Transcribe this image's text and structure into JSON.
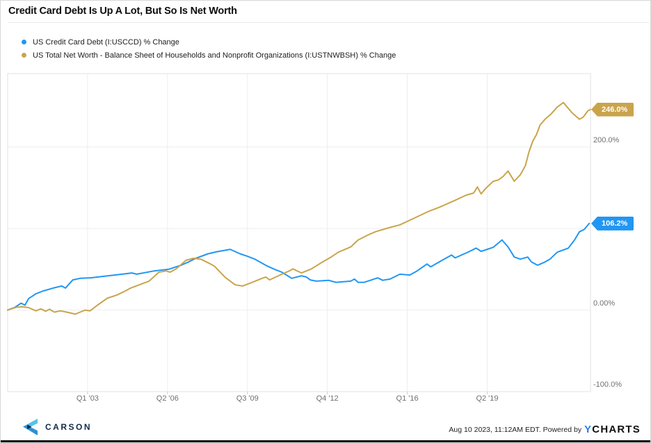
{
  "header": {
    "title": "Credit Card Debt Is Up A Lot, But So Is Net Worth"
  },
  "legend": [
    {
      "label": "US Credit Card Debt (I:USCCD) % Change",
      "color": "#2196f3"
    },
    {
      "label": "US Total Net Worth - Balance Sheet of Households and Nonprofit Organizations (I:USTNWBSH) % Change",
      "color": "#c9a44c"
    }
  ],
  "chart_data": {
    "type": "line",
    "title": "Credit Card Debt Is Up A Lot, But So Is Net Worth",
    "xlabel": "",
    "ylabel": "% Change",
    "grid": true,
    "x_axis": {
      "min": 1999.85,
      "max": 2023.55,
      "ticks": [
        {
          "label": "Q1 '03",
          "x": 2003.1
        },
        {
          "label": "Q2 '06",
          "x": 2006.35
        },
        {
          "label": "Q3 '09",
          "x": 2009.6
        },
        {
          "label": "Q4 '12",
          "x": 2012.85
        },
        {
          "label": "Q1 '16",
          "x": 2016.1
        },
        {
          "label": "Q2 '19",
          "x": 2019.35
        }
      ]
    },
    "y_axis": {
      "min": -100,
      "max": 290,
      "unit": "%",
      "gridlines": [
        200,
        100,
        0
      ],
      "ticks": [
        {
          "label": "200.0%",
          "value": 200
        },
        {
          "label": "0.00%",
          "value": 0
        },
        {
          "label": "-100.0%",
          "value": -100
        }
      ]
    },
    "series": [
      {
        "name": "US Credit Card Debt (I:USCCD) % Change",
        "color": "#2196f3",
        "end_label": "106.2%",
        "points": [
          [
            1999.85,
            0
          ],
          [
            2000.15,
            3.5
          ],
          [
            2000.4,
            8.5
          ],
          [
            2000.55,
            6
          ],
          [
            2000.7,
            14
          ],
          [
            2001.0,
            20
          ],
          [
            2001.3,
            23.5
          ],
          [
            2001.7,
            27
          ],
          [
            2002.05,
            29.5
          ],
          [
            2002.2,
            27
          ],
          [
            2002.5,
            37
          ],
          [
            2002.8,
            39
          ],
          [
            2003.2,
            39.5
          ],
          [
            2003.8,
            41.5
          ],
          [
            2004.5,
            44
          ],
          [
            2004.9,
            45.5
          ],
          [
            2005.1,
            44
          ],
          [
            2005.8,
            48
          ],
          [
            2006.4,
            50
          ],
          [
            2006.9,
            55
          ],
          [
            2007.2,
            59
          ],
          [
            2007.5,
            63.5
          ],
          [
            2008.0,
            69
          ],
          [
            2008.35,
            71.5
          ],
          [
            2008.9,
            74.5
          ],
          [
            2009.3,
            69
          ],
          [
            2009.6,
            66
          ],
          [
            2009.9,
            62.5
          ],
          [
            2010.4,
            54
          ],
          [
            2010.7,
            50
          ],
          [
            2011.0,
            46.5
          ],
          [
            2011.4,
            39
          ],
          [
            2011.8,
            42
          ],
          [
            2012.0,
            40.5
          ],
          [
            2012.15,
            37
          ],
          [
            2012.4,
            35.5
          ],
          [
            2012.9,
            36.5
          ],
          [
            2013.2,
            34
          ],
          [
            2013.8,
            35.5
          ],
          [
            2013.95,
            38
          ],
          [
            2014.1,
            34
          ],
          [
            2014.35,
            34
          ],
          [
            2014.9,
            39.5
          ],
          [
            2015.1,
            36.5
          ],
          [
            2015.4,
            38
          ],
          [
            2015.8,
            44
          ],
          [
            2016.2,
            43
          ],
          [
            2016.5,
            48
          ],
          [
            2016.9,
            56.5
          ],
          [
            2017.05,
            53
          ],
          [
            2017.6,
            62.5
          ],
          [
            2017.9,
            67.5
          ],
          [
            2018.05,
            64
          ],
          [
            2018.6,
            71.5
          ],
          [
            2018.9,
            76
          ],
          [
            2019.1,
            72
          ],
          [
            2019.4,
            75
          ],
          [
            2019.6,
            77
          ],
          [
            2019.95,
            86
          ],
          [
            2020.2,
            77.5
          ],
          [
            2020.45,
            65
          ],
          [
            2020.7,
            62.5
          ],
          [
            2021.0,
            65
          ],
          [
            2021.15,
            59
          ],
          [
            2021.4,
            55
          ],
          [
            2021.7,
            59
          ],
          [
            2021.9,
            62.5
          ],
          [
            2022.2,
            71
          ],
          [
            2022.65,
            76
          ],
          [
            2022.9,
            86
          ],
          [
            2023.1,
            96
          ],
          [
            2023.3,
            99
          ],
          [
            2023.5,
            106.2
          ]
        ]
      },
      {
        "name": "US Total Net Worth - Balance Sheet of Households and Nonprofit Organizations (I:USTNWBSH) % Change",
        "color": "#c9a44c",
        "end_label": "246.0%",
        "points": [
          [
            1999.85,
            0
          ],
          [
            2000.2,
            3.5
          ],
          [
            2000.45,
            4
          ],
          [
            2000.7,
            3
          ],
          [
            2001.0,
            -1
          ],
          [
            2001.2,
            1.5
          ],
          [
            2001.4,
            -1.5
          ],
          [
            2001.55,
            1
          ],
          [
            2001.75,
            -2.5
          ],
          [
            2002.0,
            -1
          ],
          [
            2002.25,
            -2.5
          ],
          [
            2002.6,
            -5
          ],
          [
            2002.8,
            -2.5
          ],
          [
            2003.0,
            0
          ],
          [
            2003.2,
            -1
          ],
          [
            2003.5,
            6
          ],
          [
            2003.9,
            14.5
          ],
          [
            2004.3,
            18.5
          ],
          [
            2004.6,
            23
          ],
          [
            2004.85,
            27
          ],
          [
            2005.2,
            31
          ],
          [
            2005.6,
            35.5
          ],
          [
            2006.0,
            46.5
          ],
          [
            2006.3,
            48
          ],
          [
            2006.45,
            46.5
          ],
          [
            2006.7,
            50.5
          ],
          [
            2007.1,
            61
          ],
          [
            2007.4,
            63.5
          ],
          [
            2007.7,
            62.5
          ],
          [
            2008.1,
            56.5
          ],
          [
            2008.25,
            54
          ],
          [
            2008.7,
            40
          ],
          [
            2009.1,
            31
          ],
          [
            2009.4,
            29.5
          ],
          [
            2009.8,
            34
          ],
          [
            2010.2,
            39
          ],
          [
            2010.35,
            40.5
          ],
          [
            2010.5,
            37
          ],
          [
            2011.0,
            44
          ],
          [
            2011.3,
            48
          ],
          [
            2011.45,
            50.5
          ],
          [
            2011.8,
            45.5
          ],
          [
            2012.2,
            50.5
          ],
          [
            2012.6,
            58
          ],
          [
            2013.0,
            65
          ],
          [
            2013.3,
            71
          ],
          [
            2013.8,
            77.5
          ],
          [
            2014.1,
            86
          ],
          [
            2014.5,
            92
          ],
          [
            2014.8,
            96
          ],
          [
            2015.3,
            100.5
          ],
          [
            2015.8,
            104.5
          ],
          [
            2016.4,
            113
          ],
          [
            2017.0,
            121.5
          ],
          [
            2017.4,
            126
          ],
          [
            2018.0,
            134
          ],
          [
            2018.5,
            141
          ],
          [
            2018.8,
            143.5
          ],
          [
            2018.95,
            151
          ],
          [
            2019.1,
            142.5
          ],
          [
            2019.3,
            149.5
          ],
          [
            2019.6,
            158
          ],
          [
            2019.8,
            159.5
          ],
          [
            2020.0,
            164
          ],
          [
            2020.2,
            170.5
          ],
          [
            2020.45,
            158
          ],
          [
            2020.7,
            166
          ],
          [
            2020.9,
            177
          ],
          [
            2021.05,
            194
          ],
          [
            2021.2,
            207
          ],
          [
            2021.35,
            215
          ],
          [
            2021.5,
            227
          ],
          [
            2021.7,
            234
          ],
          [
            2021.95,
            240.5
          ],
          [
            2022.2,
            249
          ],
          [
            2022.45,
            254.5
          ],
          [
            2022.6,
            249
          ],
          [
            2022.8,
            242
          ],
          [
            2023.0,
            236.5
          ],
          [
            2023.1,
            234
          ],
          [
            2023.25,
            236.5
          ],
          [
            2023.35,
            240.5
          ],
          [
            2023.45,
            244.5
          ],
          [
            2023.55,
            246
          ]
        ]
      }
    ]
  },
  "footer": {
    "brand": "CARSON",
    "timestamp": "Aug 10 2023, 11:12AM EDT. Powered by",
    "powered_logo": {
      "y": "Y",
      "charts": "CHARTS"
    }
  }
}
